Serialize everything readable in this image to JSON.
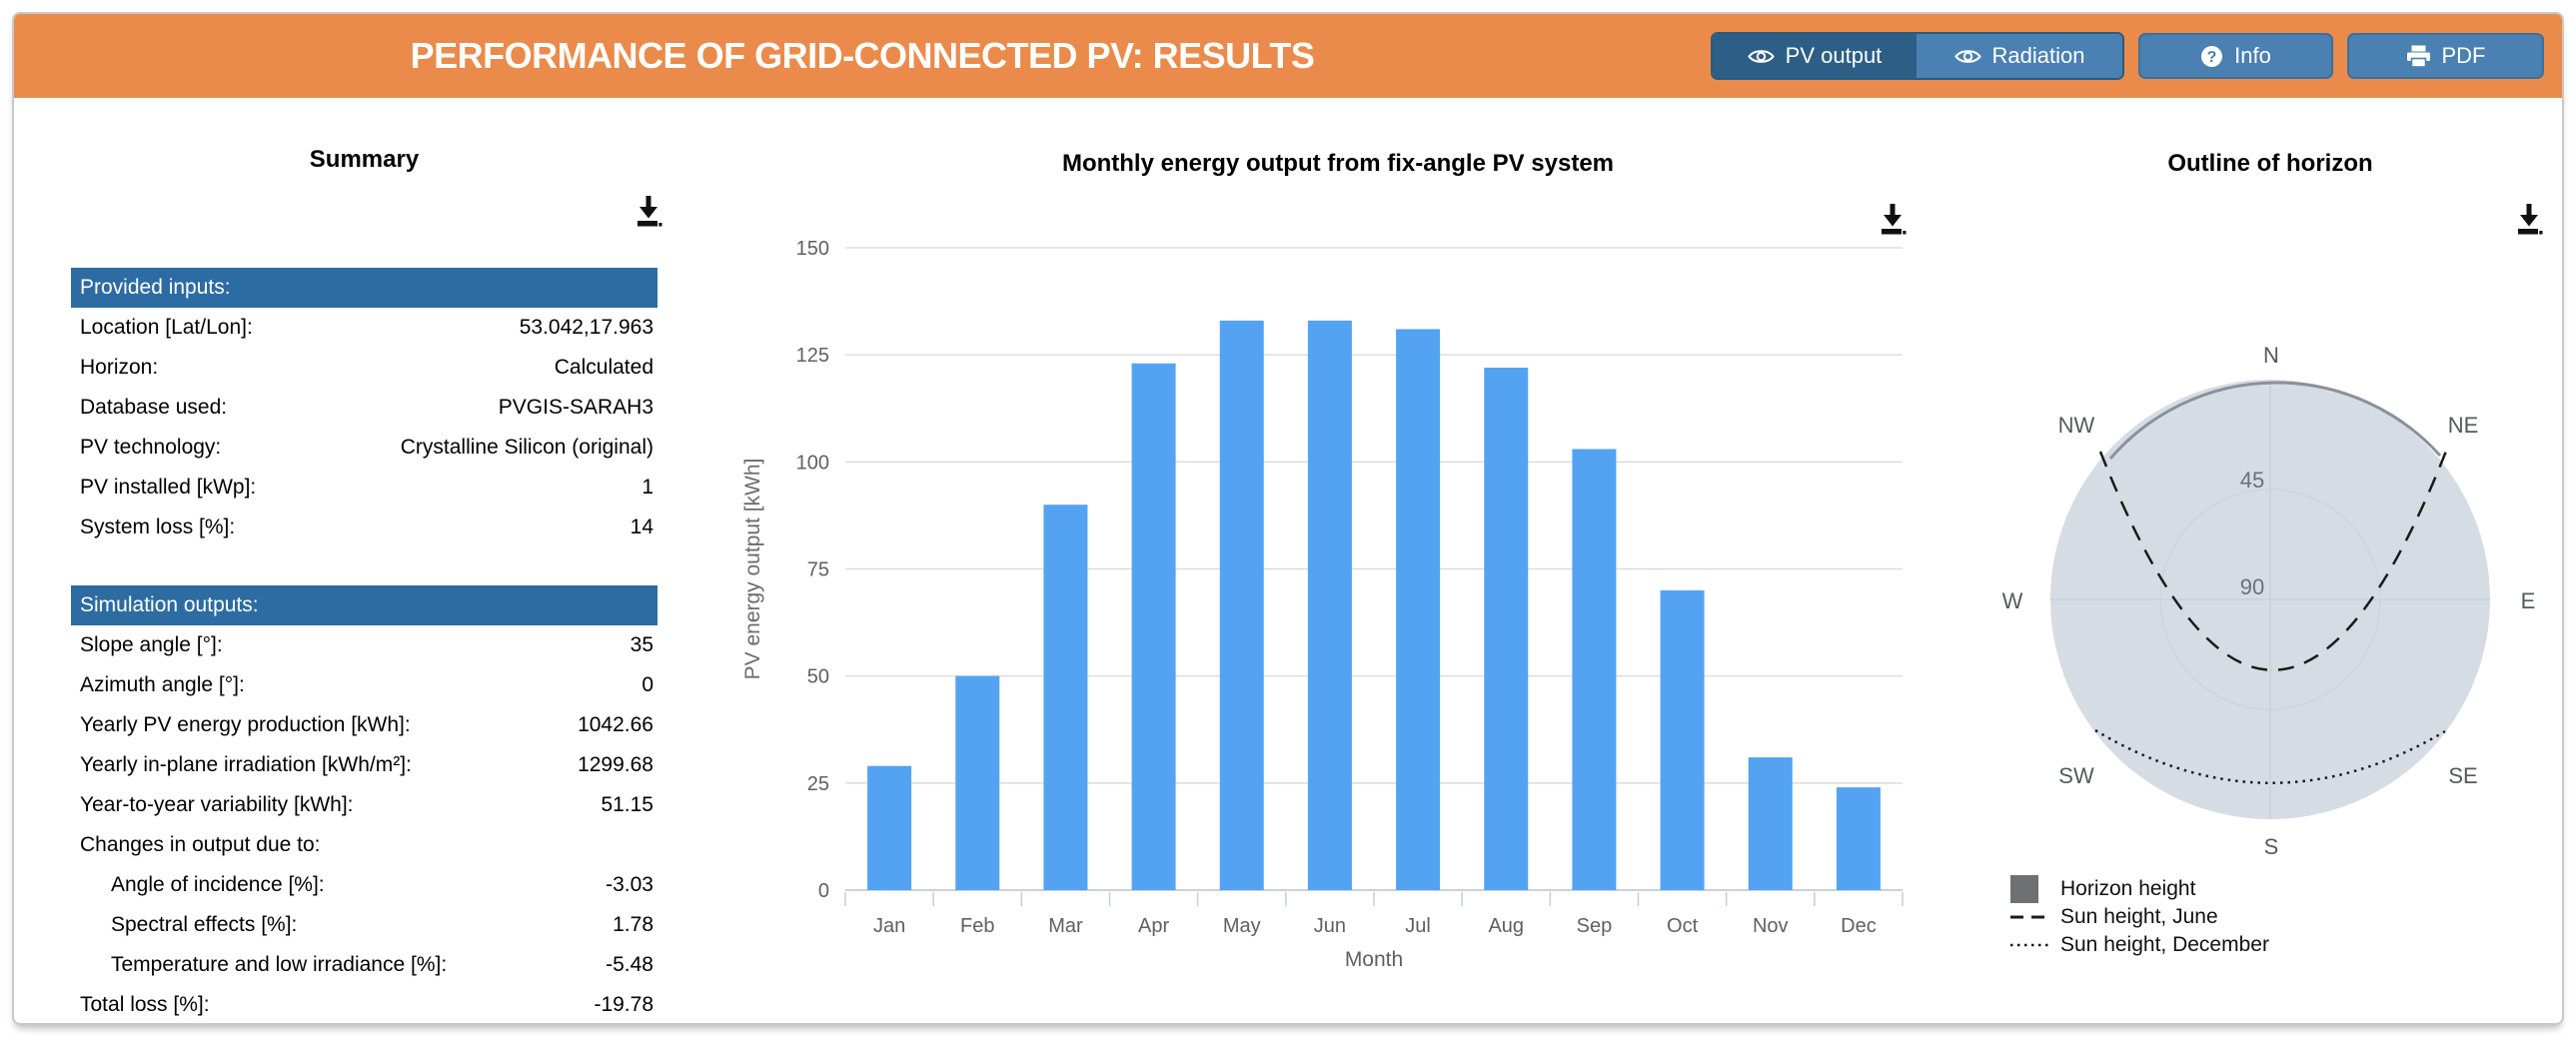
{
  "header": {
    "title": "PERFORMANCE OF GRID-CONNECTED PV: RESULTS",
    "buttons": [
      {
        "label": "PV output",
        "icon": "eye",
        "active": true
      },
      {
        "label": "Radiation",
        "icon": "eye",
        "active": false
      },
      {
        "label": "Info",
        "icon": "question-mark",
        "active": false
      },
      {
        "label": "PDF",
        "icon": "printer",
        "active": false
      }
    ]
  },
  "colors": {
    "header_orange": "#ea8b4b",
    "button_blue": "#4a80b2",
    "button_blue_active": "#2d5f86",
    "table_header_blue": "#2d6ca2",
    "bar_blue": "#54a3f3",
    "horizon_fill": "#d6dce4",
    "horizon_line_gray": "#8b9099",
    "legend_square_gray": "#6e7174"
  },
  "summary": {
    "title": "Summary",
    "sections": [
      {
        "header": "Provided inputs:",
        "rows": [
          {
            "label": "Location [Lat/Lon]:",
            "value": "53.042,17.963"
          },
          {
            "label": "Horizon:",
            "value": "Calculated"
          },
          {
            "label": "Database used:",
            "value": "PVGIS-SARAH3"
          },
          {
            "label": "PV technology:",
            "value": "Crystalline Silicon (original)"
          },
          {
            "label": "PV installed [kWp]:",
            "value": "1"
          },
          {
            "label": "System loss [%]:",
            "value": "14"
          }
        ]
      },
      {
        "header": "Simulation outputs:",
        "rows": [
          {
            "label": "Slope angle [°]:",
            "value": "35"
          },
          {
            "label": "Azimuth angle [°]:",
            "value": "0"
          },
          {
            "label": "Yearly PV energy production [kWh]:",
            "value": "1042.66"
          },
          {
            "label": "Yearly in-plane irradiation [kWh/m²]:",
            "value": "1299.68"
          },
          {
            "label": "Year-to-year variability [kWh]:",
            "value": "51.15"
          },
          {
            "label": "Changes in output due to:",
            "value": ""
          },
          {
            "label": "Angle of incidence [%]:",
            "value": "-3.03",
            "indent": true
          },
          {
            "label": "Spectral effects [%]:",
            "value": "1.78",
            "indent": true
          },
          {
            "label": "Temperature and low irradiance [%]:",
            "value": "-5.48",
            "indent": true
          },
          {
            "label": "Total loss [%]:",
            "value": "-19.78"
          }
        ]
      }
    ]
  },
  "chart_data": [
    {
      "type": "bar",
      "title": "Monthly energy output from fix-angle PV system",
      "categories": [
        "Jan",
        "Feb",
        "Mar",
        "Apr",
        "May",
        "Jun",
        "Jul",
        "Aug",
        "Sep",
        "Oct",
        "Nov",
        "Dec"
      ],
      "values": [
        29,
        50,
        90,
        123,
        133,
        133,
        131,
        122,
        103,
        70,
        31,
        24
      ],
      "xlabel": "Month",
      "ylabel": "PV energy output [kWh]",
      "ylim": [
        0,
        150
      ],
      "ytick_step": 25,
      "yticks": [
        0,
        25,
        50,
        75,
        100,
        125,
        150
      ],
      "bar_color": "#54a3f3",
      "grid": true,
      "legend_position": "none"
    },
    {
      "type": "polar-horizon",
      "title": "Outline of horizon",
      "compass_labels": [
        "N",
        "NE",
        "E",
        "SE",
        "S",
        "SW",
        "W",
        "NW"
      ],
      "radial_labels": [
        "45",
        "90"
      ],
      "legend": [
        {
          "label": "Horizon height",
          "style": "filled-square",
          "color": "#6e7174"
        },
        {
          "label": "Sun height, June",
          "style": "dashed-line"
        },
        {
          "label": "Sun height, December",
          "style": "dotted-line"
        }
      ]
    }
  ]
}
